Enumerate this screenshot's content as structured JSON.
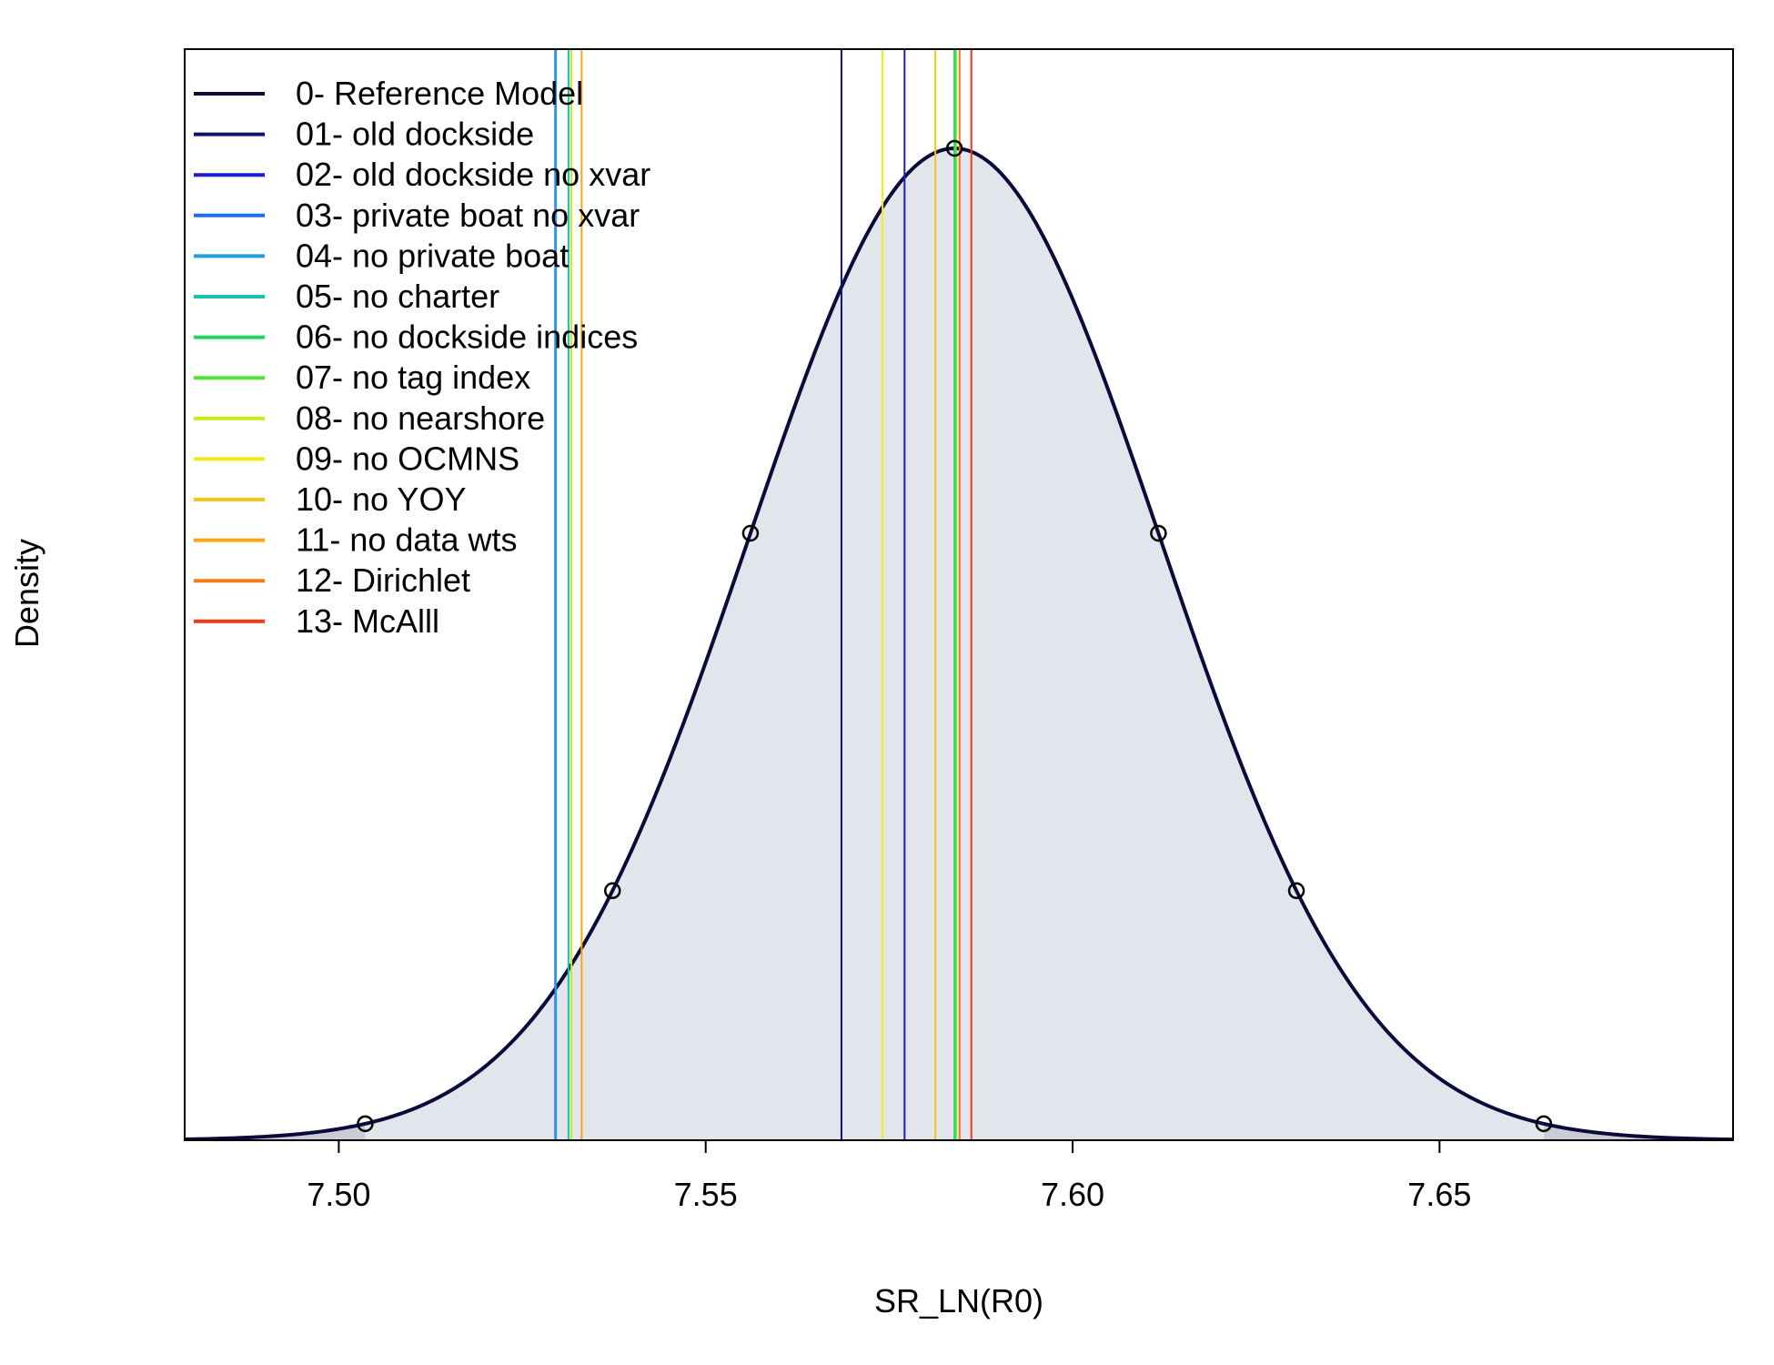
{
  "chart_data": {
    "type": "line",
    "xlabel": "SR_LN(R0)",
    "ylabel": "Density",
    "xlim": [
      7.479,
      7.69
    ],
    "x_ticks": [
      7.5,
      7.55,
      7.6,
      7.65
    ],
    "x_tick_labels": [
      "7.50",
      "7.55",
      "7.60",
      "7.65"
    ],
    "y_ticks_shown": false,
    "grid": false,
    "legend_position": "top-left",
    "density": {
      "series_name": "0- Reference Model",
      "mean": 7.5839,
      "sd": 0.02805,
      "curve_color": "#0b0b3b",
      "shade_inner_color": "#e3e5ec",
      "shade_tail_color": "#ccccd9",
      "tail_cutoffs": [
        7.5036,
        7.6642
      ],
      "marker_x": [
        7.5036,
        7.5373,
        7.5561,
        7.5839,
        7.6117,
        7.6305,
        7.6642
      ]
    },
    "vertical_lines": [
      {
        "name": "01- old dockside",
        "x": 7.5685,
        "color": "#101070"
      },
      {
        "name": "02- old dockside no xvar",
        "x": 7.5771,
        "color": "#1c1ccc"
      },
      {
        "name": "03- private boat no xvar",
        "x": 7.5295,
        "color": "#1f6af2"
      },
      {
        "name": "04- no private boat",
        "x": 7.5296,
        "color": "#1e9ee6"
      },
      {
        "name": "05- no charter",
        "x": 7.5313,
        "color": "#14c2b0"
      },
      {
        "name": "06- no dockside indices",
        "x": 7.5839,
        "color": "#22d560"
      },
      {
        "name": "07- no tag index",
        "x": 7.5841,
        "color": "#4ee62e"
      },
      {
        "name": "08- no nearshore",
        "x": 7.5317,
        "color": "#c9ec18"
      },
      {
        "name": "09- no OCMNS",
        "x": 7.5741,
        "color": "#f6ea14"
      },
      {
        "name": "10- no YOY",
        "x": 7.5813,
        "color": "#f8c412"
      },
      {
        "name": "11- no data wts",
        "x": 7.5331,
        "color": "#f8a512"
      },
      {
        "name": "12- Dirichlet",
        "x": 7.5846,
        "color": "#f77b14"
      },
      {
        "name": "13- McAlll",
        "x": 7.5862,
        "color": "#f03a10"
      }
    ]
  },
  "legend": [
    {
      "label": "0- Reference Model",
      "color": "#0b0b3b"
    },
    {
      "label": "01- old dockside",
      "color": "#101070"
    },
    {
      "label": "02- old dockside no xvar",
      "color": "#1c1ccc"
    },
    {
      "label": "03- private boat no xvar",
      "color": "#1f6af2"
    },
    {
      "label": "04- no private boat",
      "color": "#1e9ee6"
    },
    {
      "label": "05- no charter",
      "color": "#14c2b0"
    },
    {
      "label": "06- no dockside indices",
      "color": "#22d560"
    },
    {
      "label": "07- no tag index",
      "color": "#4ee62e"
    },
    {
      "label": "08- no nearshore",
      "color": "#c9ec18"
    },
    {
      "label": "09- no OCMNS",
      "color": "#f6ea14"
    },
    {
      "label": "10- no YOY",
      "color": "#f8c412"
    },
    {
      "label": "11- no data wts",
      "color": "#f8a512"
    },
    {
      "label": "12- Dirichlet",
      "color": "#f77b14"
    },
    {
      "label": "13- McAlll",
      "color": "#f03a10"
    }
  ]
}
